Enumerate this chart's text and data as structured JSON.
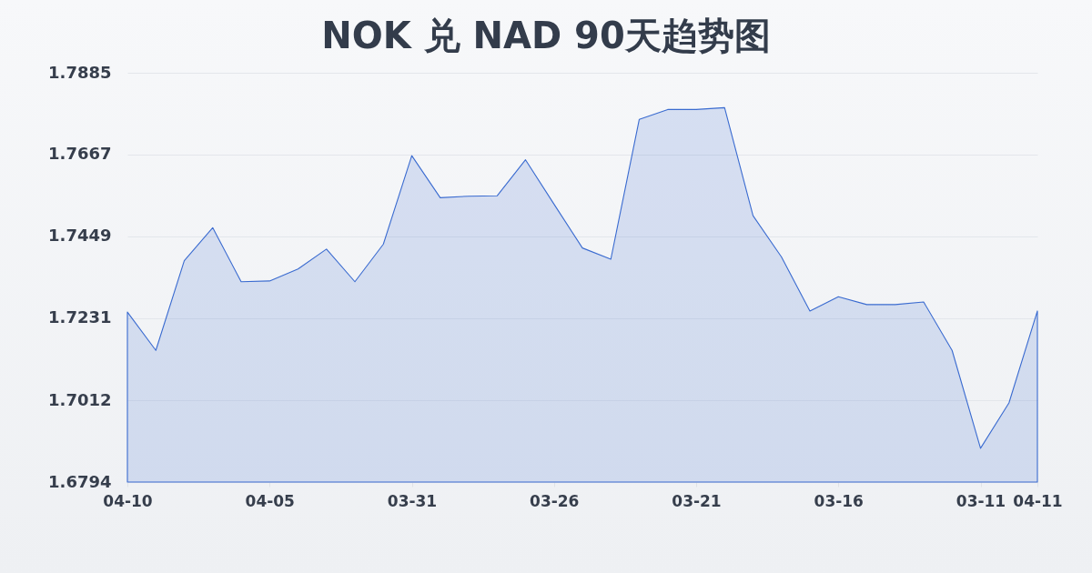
{
  "chart_data": {
    "type": "area",
    "title": "NOK 兑 NAD 90天趋势图",
    "categories": [
      "04-10",
      null,
      null,
      null,
      null,
      "04-05",
      null,
      null,
      null,
      null,
      "03-31",
      null,
      null,
      null,
      null,
      "03-26",
      null,
      null,
      null,
      null,
      "03-21",
      null,
      null,
      null,
      null,
      "03-16",
      null,
      null,
      null,
      null,
      "03-11",
      null,
      "04-11"
    ],
    "series": [
      {
        "color": "#3a6bd0",
        "values": [
          1.7247,
          1.7145,
          1.7384,
          1.7472,
          1.7328,
          1.733,
          1.7362,
          1.7415,
          1.7328,
          1.7428,
          1.7664,
          1.7552,
          1.7556,
          1.7557,
          1.7653,
          1.7535,
          1.7418,
          1.7388,
          1.7761,
          1.7787,
          1.7787,
          1.7792,
          1.7504,
          1.7394,
          1.725,
          1.7288,
          1.7267,
          1.7267,
          1.7274,
          1.7145,
          1.6884,
          1.7005,
          1.725
        ]
      }
    ],
    "ylim": [
      1.6794,
      1.7885
    ],
    "yticks": [
      1.6794,
      1.7012,
      1.7231,
      1.7449,
      1.7667,
      1.7885
    ],
    "grid": "y"
  }
}
